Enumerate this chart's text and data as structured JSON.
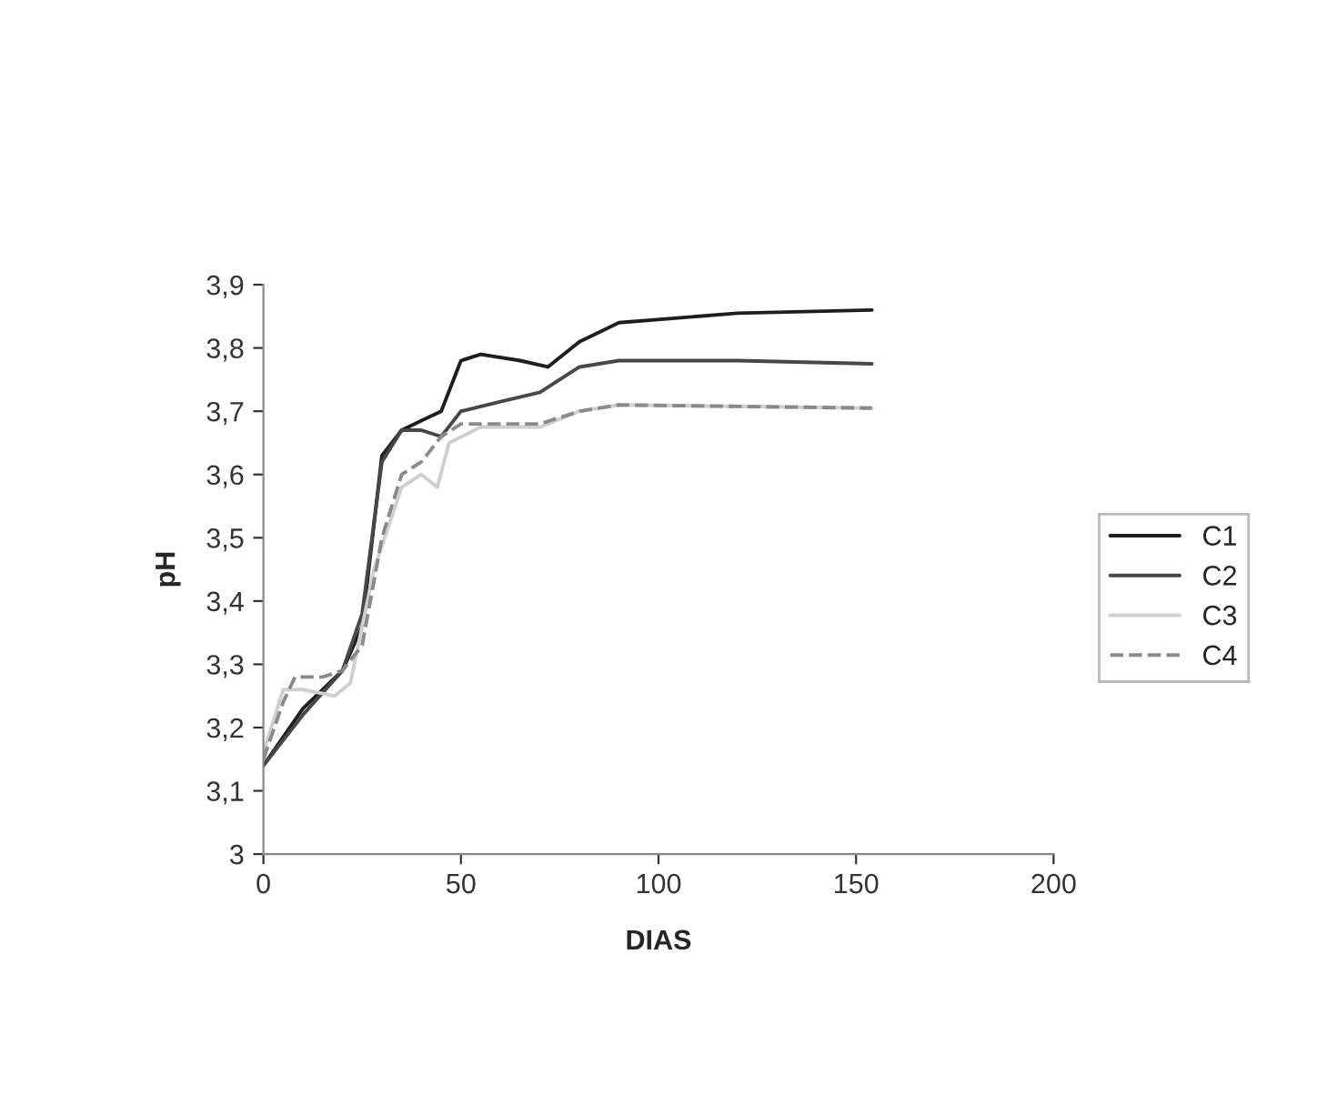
{
  "chart_data": {
    "type": "line",
    "xlabel": "DIAS",
    "ylabel": "pH",
    "xlim": [
      0,
      200
    ],
    "xticks": [
      0,
      50,
      100,
      150,
      200
    ],
    "ylim": [
      3,
      3.9
    ],
    "yticks": [
      3,
      {
        "value": 3.1,
        "label": "3,1"
      },
      {
        "value": 3.2,
        "label": "3,2"
      },
      {
        "value": 3.3,
        "label": "3,3"
      },
      {
        "value": 3.4,
        "label": "3,4"
      },
      {
        "value": 3.5,
        "label": "3,5"
      },
      {
        "value": 3.6,
        "label": "3,6"
      },
      {
        "value": 3.7,
        "label": "3,7"
      },
      {
        "value": 3.8,
        "label": "3,8"
      },
      {
        "value": 3.9,
        "label": "3,9"
      }
    ],
    "grid": false,
    "legend": "right",
    "marker": "none",
    "series": [
      {
        "name": "C1",
        "color": "#1e1e1e",
        "line_style": "solid",
        "x": [
          0,
          10,
          20,
          25,
          30,
          35,
          40,
          45,
          50,
          55,
          65,
          72,
          80,
          90,
          120,
          154
        ],
        "values": [
          3.14,
          3.23,
          3.29,
          3.36,
          3.63,
          3.67,
          3.685,
          3.7,
          3.78,
          3.79,
          3.78,
          3.77,
          3.81,
          3.84,
          3.855,
          3.86
        ]
      },
      {
        "name": "C2",
        "color": "#474747",
        "line_style": "solid",
        "x": [
          0,
          10,
          20,
          25,
          30,
          35,
          40,
          45,
          50,
          60,
          70,
          80,
          90,
          120,
          154
        ],
        "values": [
          3.14,
          3.22,
          3.29,
          3.38,
          3.62,
          3.67,
          3.67,
          3.66,
          3.7,
          3.715,
          3.73,
          3.77,
          3.78,
          3.78,
          3.775
        ]
      },
      {
        "name": "C3",
        "color": "#cfcfcf",
        "line_style": "solid",
        "x": [
          0,
          5,
          10,
          18,
          22,
          28,
          35,
          40,
          44,
          47,
          55,
          70,
          80,
          90,
          154
        ],
        "values": [
          3.16,
          3.26,
          3.26,
          3.25,
          3.27,
          3.45,
          3.58,
          3.6,
          3.58,
          3.65,
          3.675,
          3.675,
          3.7,
          3.71,
          3.705
        ]
      },
      {
        "name": "C4",
        "color": "#8a8a8a",
        "line_style": "dashed",
        "x": [
          0,
          5,
          8,
          15,
          20,
          25,
          30,
          35,
          40,
          45,
          50,
          70,
          80,
          90,
          154
        ],
        "values": [
          3.15,
          3.24,
          3.28,
          3.28,
          3.29,
          3.33,
          3.5,
          3.6,
          3.62,
          3.66,
          3.68,
          3.68,
          3.7,
          3.71,
          3.705
        ]
      }
    ]
  }
}
